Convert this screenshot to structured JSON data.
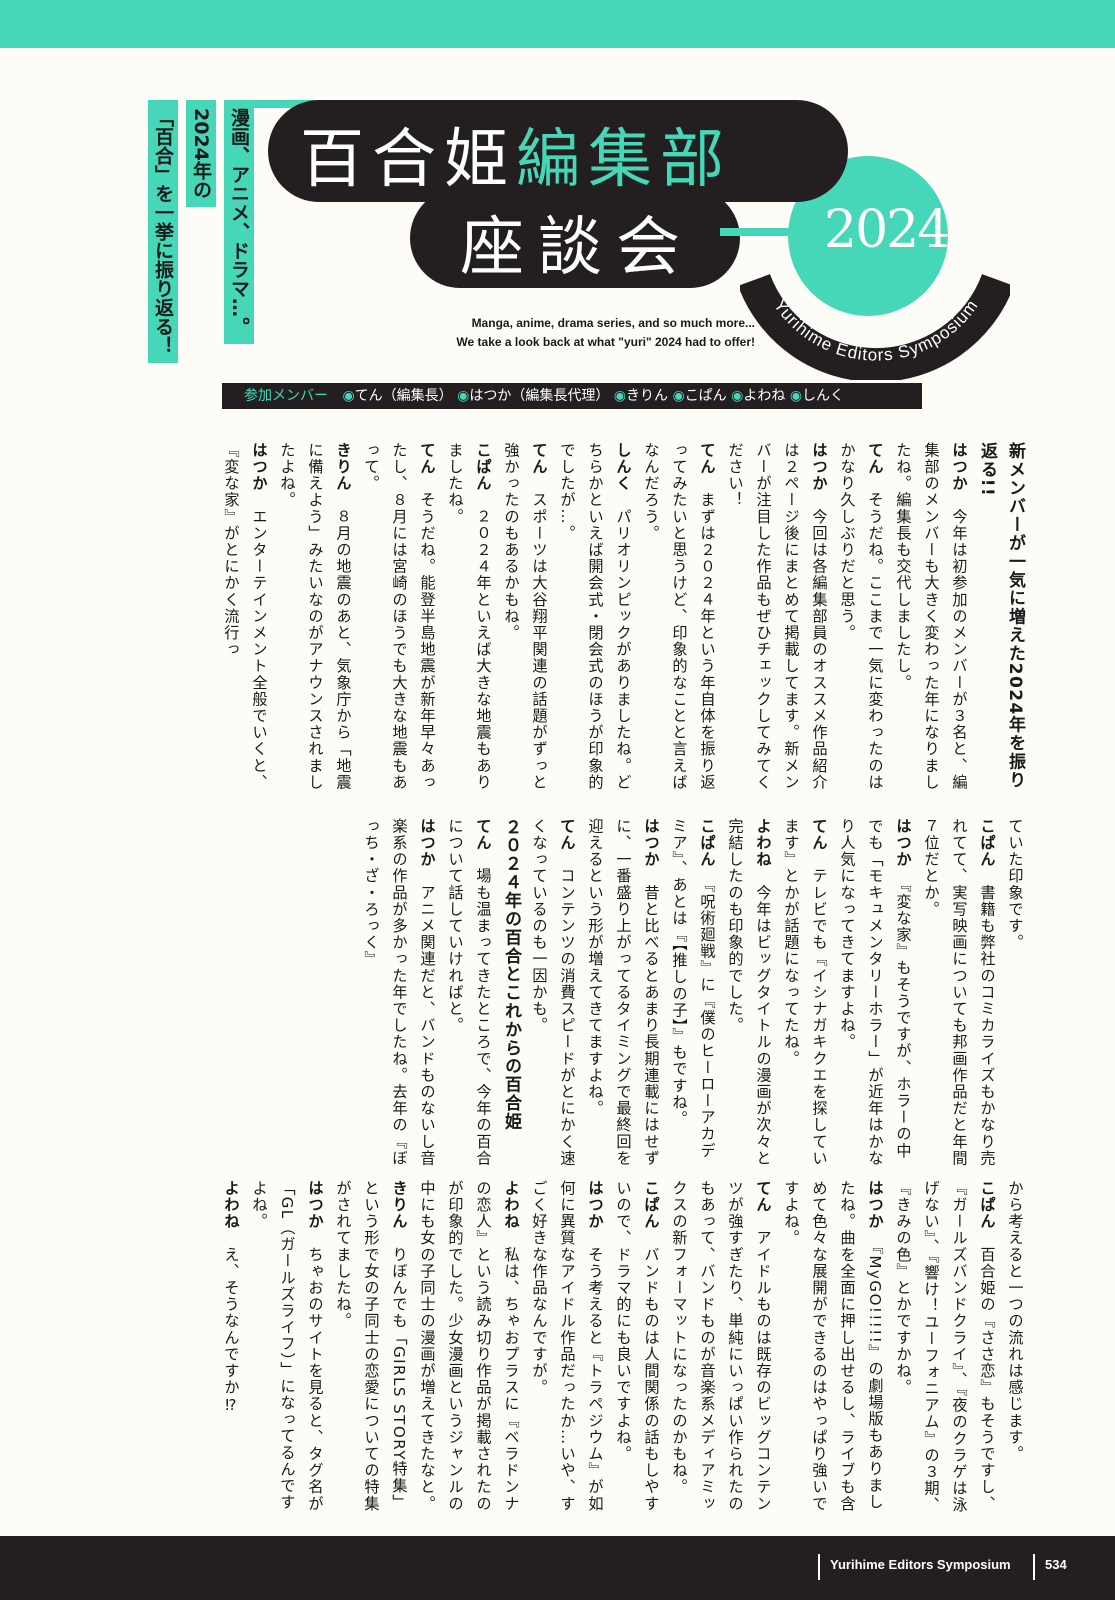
{
  "header": {
    "tagline": [
      "漫画、アニメ、ドラマ…。",
      "2024年の",
      "「百合」を一挙に振り返る！"
    ],
    "title_line1_a": "百合姫",
    "title_line1_b": "編集部",
    "title_line2": "座談会",
    "year": "2024",
    "arc_text": "Yurihime Editors Symposium",
    "subtitle": [
      "Manga, anime, drama series, and so much more...",
      "We take a look back at what \"yuri\" 2024 had to offer!"
    ]
  },
  "members": {
    "lead": "参加メンバー",
    "list": [
      "てん（編集長）",
      "はつか（編集長代理）",
      "きりん",
      "こぱん",
      "よわね",
      "しんく"
    ],
    "bullet": "◉"
  },
  "columns": {
    "col1": [
      {
        "h": "新メンバーが一気に増えた2024年を振り返る!!"
      },
      {
        "s": "はつか",
        "t": "　今年は初参加のメンバーが３名と、編集部のメンバーも大きく変わった年になりましたね。編集長も交代しましたし。"
      },
      {
        "s": "てん",
        "t": "　そうだね。ここまで一気に変わったのはかなり久しぶりだと思う。"
      },
      {
        "s": "はつか",
        "t": "　今回は各編集部員のオススメ作品紹介は２ページ後にまとめて掲載してます。新メンバーが注目した作品もぜひチェックしてみてください！"
      },
      {
        "s": "てん",
        "t": "　まずは２０２４年という年自体を振り返ってみたいと思うけど、印象的なことと言えばなんだろう。"
      },
      {
        "s": "しんく",
        "t": "　パリオリンピックがありましたね。どちらかといえば開会式・閉会式のほうが印象的でしたが…。"
      },
      {
        "s": "てん",
        "t": "　スポーツは大谷翔平関連の話題がずっと強かったのもあるかもね。"
      },
      {
        "s": "こぱん",
        "t": "　２０２４年といえば大きな地震もありましたね。"
      },
      {
        "s": "てん",
        "t": "　そうだね。能登半島地震が新年早々あったし、８月には宮崎のほうでも大きな地震もあって。"
      },
      {
        "s": "きりん",
        "t": "　８月の地震のあと、気象庁から「地震に備えよう」みたいなのがアナウンスされましたよね。"
      },
      {
        "s": "はつか",
        "t": "　エンターテインメント全般でいくと、『変な家』がとにかく流行っ"
      }
    ],
    "col2": [
      {
        "s": "",
        "t": "ていた印象です。"
      },
      {
        "s": "こぱん",
        "t": "　書籍も弊社のコミカライズもかなり売れてて、実写映画についても邦画作品だと年間７位だとか。"
      },
      {
        "s": "はつか",
        "t": "　『変な家』もそうですが、ホラーの中でも「モキュメンタリーホラー」が近年はかなり人気になってきてますよね。"
      },
      {
        "s": "てん",
        "t": "　テレビでも『イシナガキクエを探しています』とかが話題になってたね。"
      },
      {
        "s": "よわね",
        "t": "　今年はビッグタイトルの漫画が次々と完結したのも印象的でした。"
      },
      {
        "s": "こぱん",
        "t": "　『呪術廻戦』に『僕のヒーローアカデミア』、あとは『【推しの子】』もですね。"
      },
      {
        "s": "はつか",
        "t": "　昔と比べるとあまり長期連載にはせずに、一番盛り上がってるタイミングで最終回を迎えるという形が増えてきてますよね。"
      },
      {
        "s": "てん",
        "t": "　コンテンツの消費スピードがとにかく速くなっているのも一因かも。"
      },
      {
        "h": "２０２４年の百合とこれからの百合姫"
      },
      {
        "s": "てん",
        "t": "　場も温まってきたところで、今年の百合について話していければと。"
      },
      {
        "s": "はつか",
        "t": "　アニメ関連だと、バンドものないし音楽系の作品が多かった年でしたね。去年の『ぼっち・ざ・ろっく』"
      }
    ],
    "col3": [
      {
        "s": "",
        "t": "から考えると一つの流れは感じます。"
      },
      {
        "s": "こぱん",
        "t": "　百合姫の『ささ恋』もそうですし、『ガールズバンドクライ』、『夜のクラゲは泳げない』、『響け！ユーフォニアム』の３期、『きみの色』とかですかね。"
      },
      {
        "s": "はつか",
        "t": "　『MyGO!!!!!』の劇場版もありましたね。曲を全面に押し出せるし、ライブも含めて色々な展開ができるのはやっぱり強いですよね。"
      },
      {
        "s": "てん",
        "t": "　アイドルものは既存のビッグコンテンツが強すぎたり、単純にいっぱい作られたのもあって、バンドものが音楽系メディアミックスの新フォーマットになったのかもね。"
      },
      {
        "s": "こぱん",
        "t": "　バンドものは人間関係の話もしやすいので、ドラマ的にも良いですよね。"
      },
      {
        "s": "はつか",
        "t": "　そう考えると『トラペジウム』が如何に異質なアイドル作品だったか…いや、すごく好きな作品なんですが。"
      },
      {
        "s": "よわね",
        "t": "　私は、ちゃおプラスに『ベラドンナの恋人』という読み切り作品が掲載されたのが印象的でした。少女漫画というジャンルの中にも女の子同士の漫画が増えてきたなと。"
      },
      {
        "s": "きりん",
        "t": "　りぼんでも「GIRLS STORY特集」という形で女の子同士の恋愛についての特集がされてましたね。"
      },
      {
        "s": "はつか",
        "t": "　ちゃおのサイトを見ると、タグ名が「GL（ガールズライフ）」になってるんですよね。"
      },
      {
        "s": "よわね",
        "t": "　え、そうなんですか⁉"
      }
    ]
  },
  "footer": {
    "title": "Yurihime Editors Symposium",
    "page": "534"
  },
  "colors": {
    "accent": "#45d7b8",
    "dark": "#231f20",
    "paper": "#fdfcf7"
  }
}
